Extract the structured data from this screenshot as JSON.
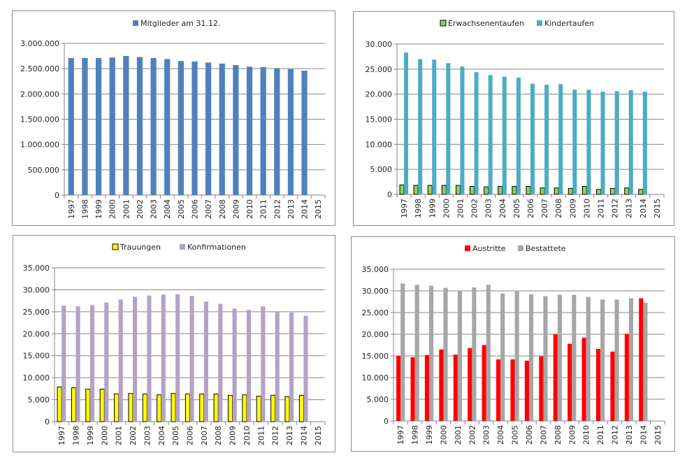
{
  "chart_data": [
    {
      "type": "bar",
      "title": "",
      "xlabel": "",
      "ylabel": "",
      "categories": [
        "1997",
        "1998",
        "1999",
        "2000",
        "2001",
        "2002",
        "2003",
        "2004",
        "2005",
        "2006",
        "2007",
        "2008",
        "2009",
        "2010",
        "2011",
        "2012",
        "2013",
        "2014",
        "2015"
      ],
      "ylim": [
        0,
        3000000
      ],
      "yticks": [
        0,
        500000,
        1000000,
        1500000,
        2000000,
        2500000,
        3000000
      ],
      "ytick_labels": [
        "0",
        "500.000",
        "1.000.000",
        "1.500.000",
        "2.000.000",
        "2.500.000",
        "3.000.000"
      ],
      "grid": true,
      "legend_position": "top",
      "series": [
        {
          "name": "Mitglieder am 31.12.",
          "color": "#4f81bd",
          "border": false,
          "values": [
            2710000,
            2710000,
            2710000,
            2720000,
            2750000,
            2730000,
            2710000,
            2690000,
            2650000,
            2640000,
            2620000,
            2600000,
            2570000,
            2540000,
            2530000,
            2510000,
            2490000,
            2460000,
            null
          ]
        }
      ]
    },
    {
      "type": "bar",
      "title": "",
      "xlabel": "",
      "ylabel": "",
      "categories": [
        "1997",
        "1998",
        "1999",
        "2000",
        "2001",
        "2002",
        "2003",
        "2004",
        "2005",
        "2006",
        "2007",
        "2008",
        "2009",
        "2010",
        "2011",
        "2012",
        "2013",
        "2014",
        "2015"
      ],
      "ylim": [
        0,
        30000
      ],
      "yticks": [
        0,
        5000,
        10000,
        15000,
        20000,
        25000,
        30000
      ],
      "ytick_labels": [
        "0",
        "5.000",
        "10.000",
        "15.000",
        "20.000",
        "25.000",
        "30.000"
      ],
      "grid": true,
      "legend_position": "top",
      "series": [
        {
          "name": "Erwachsenentaufen",
          "color": "#92d050",
          "border": true,
          "values": [
            1900,
            1800,
            1800,
            1800,
            1800,
            1600,
            1500,
            1600,
            1600,
            1600,
            1300,
            1300,
            1200,
            1600,
            1000,
            1200,
            1300,
            1000,
            null
          ]
        },
        {
          "name": "Kindertaufen",
          "color": "#4bacc6",
          "border": false,
          "values": [
            28300,
            27000,
            26900,
            26200,
            25500,
            24400,
            23800,
            23500,
            23300,
            22100,
            21900,
            22000,
            20900,
            20900,
            20500,
            20600,
            20800,
            20500,
            null
          ]
        }
      ]
    },
    {
      "type": "bar",
      "title": "",
      "xlabel": "",
      "ylabel": "",
      "categories": [
        "1997",
        "1998",
        "1999",
        "2000",
        "2001",
        "2002",
        "2003",
        "2004",
        "2005",
        "2006",
        "2007",
        "2008",
        "2009",
        "2010",
        "2011",
        "2012",
        "2013",
        "2014",
        "2015"
      ],
      "ylim": [
        0,
        35000
      ],
      "yticks": [
        0,
        5000,
        10000,
        15000,
        20000,
        25000,
        30000,
        35000
      ],
      "ytick_labels": [
        "0",
        "5.000",
        "10.000",
        "15.000",
        "20.000",
        "25.000",
        "30.000",
        "35.000"
      ],
      "grid": true,
      "legend_position": "top",
      "series": [
        {
          "name": "Trauungen",
          "color": "#ffff00",
          "border": true,
          "values": [
            7900,
            7700,
            7400,
            7400,
            6300,
            6400,
            6300,
            6100,
            6400,
            6300,
            6300,
            6300,
            6000,
            6100,
            5800,
            6000,
            5700,
            6000,
            null
          ]
        },
        {
          "name": "Konfirmationen",
          "color": "#b3a2c7",
          "border": false,
          "values": [
            26400,
            26200,
            26500,
            27100,
            27800,
            28400,
            28700,
            28900,
            29000,
            28600,
            27300,
            26800,
            25700,
            25400,
            26200,
            25000,
            24800,
            24100,
            null
          ]
        }
      ]
    },
    {
      "type": "bar",
      "title": "",
      "xlabel": "",
      "ylabel": "",
      "categories": [
        "1997",
        "1998",
        "1999",
        "2000",
        "2001",
        "2002",
        "2003",
        "2004",
        "2005",
        "2006",
        "2007",
        "2008",
        "2009",
        "2010",
        "2011",
        "2012",
        "2013",
        "2014",
        "2015"
      ],
      "ylim": [
        0,
        35000
      ],
      "yticks": [
        0,
        5000,
        10000,
        15000,
        20000,
        25000,
        30000,
        35000
      ],
      "ytick_labels": [
        "0",
        "5.000",
        "10.000",
        "15.000",
        "20.000",
        "25.000",
        "30.000",
        "35.000"
      ],
      "grid": true,
      "legend_position": "top",
      "series": [
        {
          "name": "Austritte",
          "color": "#ff0000",
          "border": false,
          "values": [
            15000,
            14700,
            15200,
            16500,
            15300,
            16800,
            17500,
            14200,
            14200,
            13900,
            14900,
            20000,
            17800,
            19200,
            16600,
            16000,
            20100,
            28300,
            null
          ]
        },
        {
          "name": "Bestattete",
          "color": "#a6a6a6",
          "border": false,
          "values": [
            31700,
            31400,
            31200,
            30700,
            30100,
            30800,
            31400,
            29400,
            30100,
            29200,
            28800,
            29100,
            29100,
            28600,
            28000,
            28000,
            28300,
            27300,
            null
          ]
        }
      ]
    }
  ]
}
